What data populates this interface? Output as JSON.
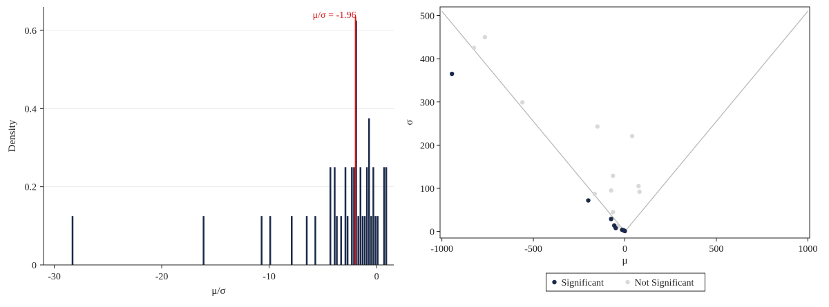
{
  "chart_data": [
    {
      "type": "bar",
      "chart_kind": "histogram",
      "xlabel": "μ/σ",
      "ylabel": "Density",
      "xlim": [
        -31,
        1.6
      ],
      "ylim": [
        0,
        0.66
      ],
      "xticks": [
        -30,
        -20,
        -10,
        0
      ],
      "xtick_labels": [
        "-30",
        "-20",
        "-10",
        "0"
      ],
      "yticks": [
        0,
        0.2,
        0.4,
        0.6
      ],
      "ytick_labels": [
        "0",
        "0.2",
        "0.4",
        "0.6"
      ],
      "grid": true,
      "bar_color": "#1b2a4a",
      "bin_width": 0.2,
      "bins": [
        {
          "x": -28.4,
          "density": 0.125
        },
        {
          "x": -16.2,
          "density": 0.125
        },
        {
          "x": -10.8,
          "density": 0.125
        },
        {
          "x": -10.0,
          "density": 0.125
        },
        {
          "x": -8.0,
          "density": 0.125
        },
        {
          "x": -6.6,
          "density": 0.125
        },
        {
          "x": -5.8,
          "density": 0.125
        },
        {
          "x": -4.4,
          "density": 0.25
        },
        {
          "x": -4.0,
          "density": 0.25
        },
        {
          "x": -3.8,
          "density": 0.125
        },
        {
          "x": -3.4,
          "density": 0.125
        },
        {
          "x": -3.0,
          "density": 0.25
        },
        {
          "x": -2.8,
          "density": 0.125
        },
        {
          "x": -2.4,
          "density": 0.25
        },
        {
          "x": -2.2,
          "density": 0.25
        },
        {
          "x": -2.0,
          "density": 0.625
        },
        {
          "x": -1.8,
          "density": 0.125
        },
        {
          "x": -1.6,
          "density": 0.25
        },
        {
          "x": -1.4,
          "density": 0.125
        },
        {
          "x": -1.2,
          "density": 0.125
        },
        {
          "x": -1.0,
          "density": 0.25
        },
        {
          "x": -0.8,
          "density": 0.375
        },
        {
          "x": -0.6,
          "density": 0.125
        },
        {
          "x": -0.4,
          "density": 0.25
        },
        {
          "x": -0.2,
          "density": 0.125
        },
        {
          "x": 0.0,
          "density": 0.125
        },
        {
          "x": 0.6,
          "density": 0.25
        },
        {
          "x": 0.8,
          "density": 0.25
        }
      ],
      "reference_line": {
        "x": -1.96,
        "label": "μ/σ = -1.96",
        "color": "#d9141a"
      }
    },
    {
      "type": "scatter",
      "xlabel": "μ",
      "ylabel": "σ",
      "xlim": [
        -1010,
        1010
      ],
      "ylim": [
        -15,
        520
      ],
      "xticks": [
        -1000,
        -500,
        0,
        500,
        1000
      ],
      "xtick_labels": [
        "-1000",
        "-500",
        "0",
        "500",
        "1000"
      ],
      "yticks": [
        0,
        100,
        200,
        300,
        400,
        500
      ],
      "ytick_labels": [
        "0",
        "100",
        "200",
        "300",
        "400",
        "500"
      ],
      "grid": false,
      "boundary_lines": [
        {
          "points": [
            [
              -1000,
              510
            ],
            [
              0,
              0
            ]
          ],
          "color": "#b5b5b5"
        },
        {
          "points": [
            [
              0,
              0
            ],
            [
              1000,
              510
            ]
          ],
          "color": "#b5b5b5"
        }
      ],
      "legend": {
        "placement": "bottom-center"
      },
      "series": [
        {
          "name": "Significant",
          "color": "#1b2a4a",
          "points": [
            {
              "x": -945,
              "y": 365
            },
            {
              "x": -200,
              "y": 72
            },
            {
              "x": -75,
              "y": 29
            },
            {
              "x": -58,
              "y": 14
            },
            {
              "x": -50,
              "y": 8
            },
            {
              "x": -15,
              "y": 4
            },
            {
              "x": -8,
              "y": 3
            },
            {
              "x": -3,
              "y": 2
            },
            {
              "x": 0,
              "y": 1
            }
          ]
        },
        {
          "name": "Not Significant",
          "color": "#d9d9d9",
          "points": [
            {
              "x": -825,
              "y": 425
            },
            {
              "x": -765,
              "y": 450
            },
            {
              "x": -560,
              "y": 299
            },
            {
              "x": -150,
              "y": 243
            },
            {
              "x": 40,
              "y": 221
            },
            {
              "x": -65,
              "y": 129
            },
            {
              "x": -75,
              "y": 95
            },
            {
              "x": -165,
              "y": 87
            },
            {
              "x": 75,
              "y": 105
            },
            {
              "x": 80,
              "y": 92
            },
            {
              "x": -65,
              "y": 45
            },
            {
              "x": -40,
              "y": 12
            }
          ]
        }
      ]
    }
  ]
}
